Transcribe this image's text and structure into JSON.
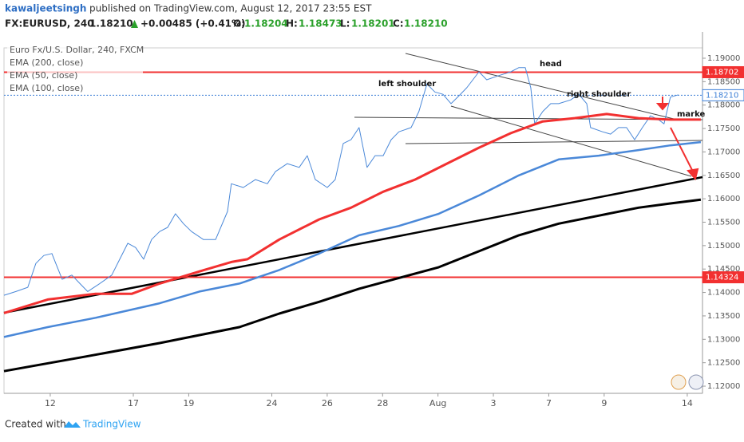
{
  "header": {
    "author": "kawaljeetsingh",
    "published": "published on TradingView.com, August 12, 2017 23:55 EST",
    "symbol": "FX:EURUSD, 240",
    "last": "1.18210",
    "change": "+0.00485 (+0.41%)",
    "ohlc": [
      "O:",
      "1.18204",
      "H:",
      "1.18473",
      "L:",
      "1.18201",
      "C:",
      "1.18210"
    ]
  },
  "footer": {
    "created": "Created with",
    "brand": "TradingView"
  },
  "chart_data": {
    "type": "line",
    "legend": [
      "Euro Fx/U.S. Dollar, 240, FXCM",
      "EMA (200, close)",
      "EMA (50, close)",
      "EMA (100, close)"
    ],
    "xlim": [
      -1.67,
      23.55
    ],
    "xticks": [
      {
        "value": 0,
        "label": "12"
      },
      {
        "value": 3,
        "label": "17"
      },
      {
        "value": 5,
        "label": "19"
      },
      {
        "value": 8,
        "label": "24"
      },
      {
        "value": 10,
        "label": "26"
      },
      {
        "value": 12,
        "label": "28"
      },
      {
        "value": 14,
        "label": "Aug"
      },
      {
        "value": 16,
        "label": "3"
      },
      {
        "value": 18,
        "label": "7"
      },
      {
        "value": 20,
        "label": "9"
      },
      {
        "value": 23,
        "label": "14"
      }
    ],
    "ylim": [
      1.11847,
      1.19221
    ],
    "yticks": [
      {
        "value": 1.19,
        "label": "1.19000"
      },
      {
        "value": 1.185,
        "label": "1.18500"
      },
      {
        "value": 1.18,
        "label": "1.18000"
      },
      {
        "value": 1.175,
        "label": "1.17500"
      },
      {
        "value": 1.17,
        "label": "1.17000"
      },
      {
        "value": 1.165,
        "label": "1.16500"
      },
      {
        "value": 1.16,
        "label": "1.16000"
      },
      {
        "value": 1.155,
        "label": "1.15500"
      },
      {
        "value": 1.15,
        "label": "1.15000"
      },
      {
        "value": 1.145,
        "label": "1.14500"
      },
      {
        "value": 1.14,
        "label": "1.14000"
      },
      {
        "value": 1.135,
        "label": "1.13500"
      },
      {
        "value": 1.13,
        "label": "1.13000"
      },
      {
        "value": 1.125,
        "label": "1.12500"
      },
      {
        "value": 1.12,
        "label": "1.12000"
      }
    ],
    "levels": [
      {
        "value": 1.18702,
        "color": "#f23030"
      },
      {
        "value": 1.14324,
        "color": "#f23030"
      },
      {
        "value": 1.1821,
        "label": "1.18210",
        "color": "#3d7fd6"
      }
    ],
    "annotations": [
      "head",
      "left shoulder",
      "right shoulder",
      "marke"
    ],
    "series": [
      {
        "color": "#4a88d8",
        "width": 1,
        "x": [
          -1.67,
          -1.24,
          -0.81,
          -0.52,
          -0.23,
          0.06,
          0.2,
          0.43,
          0.78,
          1.07,
          1.35,
          1.79,
          2.22,
          2.51,
          2.8,
          3.08,
          3.37,
          3.66,
          3.95,
          4.24,
          4.52,
          4.81,
          5.1,
          5.53,
          5.97,
          6.4,
          6.54,
          6.97,
          7.41,
          7.84,
          8.13,
          8.56,
          8.99,
          9.28,
          9.57,
          10.0,
          10.29,
          10.58,
          10.86,
          11.15,
          11.44,
          11.73,
          12.02,
          12.31,
          12.59,
          13.03,
          13.31,
          13.6,
          13.89,
          14.18,
          14.47,
          14.76,
          15.04,
          15.48,
          15.76,
          16.2,
          16.63,
          16.92,
          17.15,
          17.35,
          17.49,
          17.78,
          18.07,
          18.36,
          18.79,
          19.08,
          19.37,
          19.51,
          19.94,
          20.23,
          20.52,
          20.81,
          21.1,
          21.38,
          21.67,
          21.96,
          22.16,
          22.39,
          22.68
        ],
        "values": [
          1.1394,
          1.1402,
          1.1411,
          1.1462,
          1.1479,
          1.1483,
          1.1462,
          1.1428,
          1.1437,
          1.1419,
          1.1402,
          1.1419,
          1.1437,
          1.1471,
          1.1505,
          1.1496,
          1.1471,
          1.1513,
          1.153,
          1.1539,
          1.1568,
          1.1547,
          1.153,
          1.1513,
          1.1513,
          1.1573,
          1.1632,
          1.1624,
          1.1641,
          1.1632,
          1.1658,
          1.1675,
          1.1667,
          1.1692,
          1.1641,
          1.1624,
          1.1641,
          1.1718,
          1.1726,
          1.1752,
          1.1667,
          1.1692,
          1.1692,
          1.1726,
          1.1743,
          1.1752,
          1.1786,
          1.1845,
          1.1828,
          1.1823,
          1.1803,
          1.182,
          1.1837,
          1.1871,
          1.1854,
          1.1863,
          1.1871,
          1.188,
          1.188,
          1.1837,
          1.176,
          1.1786,
          1.1803,
          1.1803,
          1.1811,
          1.1823,
          1.1803,
          1.1752,
          1.1743,
          1.1738,
          1.1752,
          1.1752,
          1.1726,
          1.1752,
          1.1777,
          1.1769,
          1.176,
          1.1817,
          1.1822
        ]
      },
      {
        "color": "#000000",
        "width": 3,
        "x": [
          -1.67,
          1.07,
          3.95,
          5.39,
          6.83,
          8.27,
          9.71,
          11.15,
          12.59,
          14.03,
          15.48,
          16.92,
          18.36,
          19.8,
          21.24,
          22.39,
          23.49
        ],
        "values": [
          1.1232,
          1.1261,
          1.1292,
          1.1309,
          1.1326,
          1.1355,
          1.138,
          1.1408,
          1.1431,
          1.1454,
          1.1488,
          1.1522,
          1.1547,
          1.1564,
          1.1581,
          1.159,
          1.1598
        ]
      },
      {
        "color": "#f23030",
        "width": 3,
        "x": [
          -1.67,
          -0.09,
          1.64,
          2.94,
          3.95,
          5.39,
          6.54,
          7.12,
          8.27,
          9.71,
          10.86,
          12.02,
          13.17,
          14.32,
          15.48,
          16.63,
          17.78,
          18.93,
          20.09,
          21.24,
          22.39,
          23.49
        ],
        "values": [
          1.1356,
          1.1385,
          1.1397,
          1.1397,
          1.1419,
          1.1445,
          1.1465,
          1.1471,
          1.1513,
          1.1556,
          1.1581,
          1.1615,
          1.1641,
          1.1675,
          1.1709,
          1.174,
          1.1765,
          1.1772,
          1.1781,
          1.1772,
          1.1769,
          1.1769
        ]
      },
      {
        "color": "#4a88d8",
        "width": 2.5,
        "x": [
          -1.67,
          -0.09,
          1.64,
          3.95,
          5.39,
          6.83,
          8.27,
          9.71,
          11.15,
          12.59,
          14.03,
          15.48,
          16.92,
          18.36,
          19.8,
          21.24,
          22.39,
          23.49
        ],
        "values": [
          1.1305,
          1.1326,
          1.1346,
          1.1377,
          1.1402,
          1.1419,
          1.1448,
          1.1483,
          1.1522,
          1.1542,
          1.1568,
          1.1607,
          1.165,
          1.1684,
          1.1692,
          1.1704,
          1.1714,
          1.1721
        ]
      }
    ]
  }
}
